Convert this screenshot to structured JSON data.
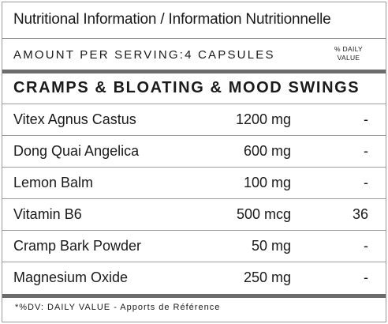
{
  "label": {
    "title": "Nutritional Information / Information Nutritionnelle",
    "serving": "AMOUNT PER SERVING:4 CAPSULES",
    "dv_header_line1": "% DAILY",
    "dv_header_line2": "VALUE",
    "category": "CRAMPS & BLOATING & MOOD SWINGS",
    "ingredients": [
      {
        "name": "Vitex Agnus Castus",
        "amount": "1200 mg",
        "dv": "-"
      },
      {
        "name": "Dong Quai Angelica",
        "amount": "600 mg",
        "dv": "-"
      },
      {
        "name": "Lemon Balm",
        "amount": "100 mg",
        "dv": "-"
      },
      {
        "name": "Vitamin B6",
        "amount": "500 mcg",
        "dv": "36"
      },
      {
        "name": "Cramp Bark Powder",
        "amount": "50 mg",
        "dv": "-"
      },
      {
        "name": "Magnesium Oxide",
        "amount": "250 mg",
        "dv": "-"
      }
    ],
    "footnote": "*%DV: DAILY VALUE - Apports de Référence"
  }
}
